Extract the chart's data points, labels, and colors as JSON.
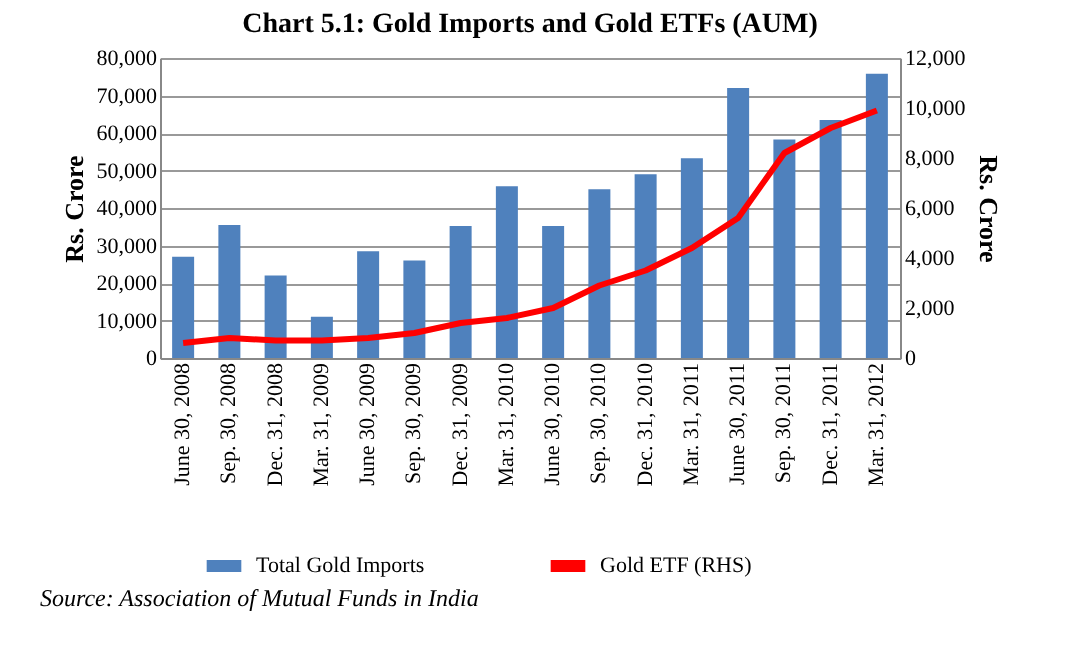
{
  "chart_data": {
    "type": "bar",
    "title": "Chart 5.1: Gold Imports and Gold ETFs (AUM)",
    "ylabel": "Rs. Crore",
    "y2label": "Rs. Crore",
    "categories": [
      "June 30, 2008",
      "Sep. 30, 2008",
      "Dec. 31, 2008",
      "Mar. 31, 2009",
      "June 30, 2009",
      "Sep. 30, 2009",
      "Dec. 31, 2009",
      "Mar. 31, 2010",
      "June 30, 2010",
      "Sep. 30, 2010",
      "Dec. 31, 2010",
      "Mar. 31, 2011",
      "June 30, 2011",
      "Sep. 30, 2011",
      "Dec. 31, 2011",
      "Mar. 31, 2012"
    ],
    "series": [
      {
        "name": "Total Gold Imports",
        "color": "#4f81bd",
        "values": [
          27000,
          35500,
          22000,
          11000,
          28500,
          26000,
          35200,
          45800,
          35200,
          45000,
          49000,
          53300,
          72000,
          58300,
          63500,
          75800
        ]
      },
      {
        "name": "Gold ETF (RHS)",
        "type": "line",
        "axis": "y2",
        "color": "#ff0000",
        "values": [
          600,
          800,
          700,
          700,
          800,
          1000,
          1400,
          1600,
          2000,
          2900,
          3500,
          4400,
          5600,
          8200,
          9200,
          9900
        ]
      }
    ],
    "ylim": [
      0,
      80000
    ],
    "yticks": [
      0,
      {
        "value": 10000,
        "label": "10,000"
      },
      {
        "value": 20000,
        "label": "20,000"
      },
      {
        "value": 30000,
        "label": "30,000"
      },
      {
        "value": 40000,
        "label": "40,000"
      },
      {
        "value": 50000,
        "label": "50,000"
      },
      {
        "value": 60000,
        "label": "60,000"
      },
      {
        "value": 70000,
        "label": "70,000"
      },
      {
        "value": 80000,
        "label": "80,000"
      }
    ],
    "y2lim": [
      0,
      12000
    ],
    "y2ticks": [
      0,
      {
        "value": 2000,
        "label": "2,000"
      },
      {
        "value": 4000,
        "label": "4,000"
      },
      {
        "value": 6000,
        "label": "6,000"
      },
      {
        "value": 8000,
        "label": "8,000"
      },
      {
        "value": 10000,
        "label": "10,000"
      },
      {
        "value": 12000,
        "label": "12,000"
      }
    ],
    "grid": "y",
    "legend": "bottom",
    "marker": "none",
    "line_style": "solid",
    "annotations": [
      "Source: Association of Mutual Funds in India"
    ]
  }
}
